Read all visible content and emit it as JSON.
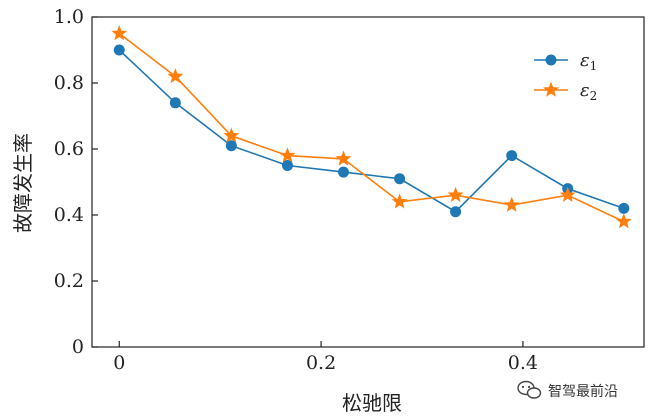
{
  "chart_data": {
    "type": "line",
    "xlabel": "松驰限",
    "ylabel": "故障发生率",
    "xlim": [
      -0.027,
      0.52
    ],
    "ylim": [
      0,
      1.0
    ],
    "xticks": [
      0,
      0.2,
      0.4
    ],
    "xtick_labels": [
      "0",
      "0.2",
      "0.4"
    ],
    "yticks": [
      0,
      0.2,
      0.4,
      0.6,
      0.8,
      1.0
    ],
    "ytick_labels": [
      "0",
      "0.2",
      "0.4",
      "0.6",
      "0.8",
      "1.0"
    ],
    "grid": false,
    "legend_position": "top-right",
    "x": [
      0,
      0.0556,
      0.1111,
      0.1667,
      0.2222,
      0.2778,
      0.3333,
      0.3889,
      0.4444,
      0.5
    ],
    "series": [
      {
        "name": "ε",
        "name_sub": "1",
        "marker": "circle",
        "color": "#1f77b4",
        "values": [
          0.9,
          0.74,
          0.61,
          0.55,
          0.53,
          0.51,
          0.41,
          0.58,
          0.48,
          0.42
        ]
      },
      {
        "name": "ε",
        "name_sub": "2",
        "marker": "star",
        "color": "#ff7f0e",
        "values": [
          0.95,
          0.82,
          0.64,
          0.58,
          0.57,
          0.44,
          0.46,
          0.43,
          0.46,
          0.38
        ]
      }
    ]
  },
  "watermark": {
    "icon": "wechat-icon",
    "text": "智驾最前沿"
  }
}
